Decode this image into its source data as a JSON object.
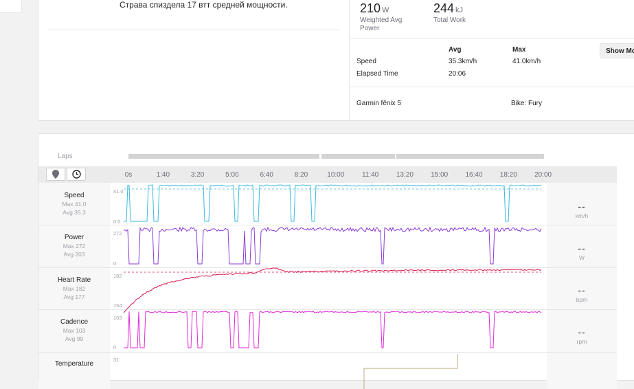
{
  "description": "Страва спиздела 17 втт средней мощности.",
  "stats": [
    {
      "value": "210",
      "unit": "W",
      "label": "Weighted Avg Power"
    },
    {
      "value": "244",
      "unit": "kJ",
      "label": "Total Work"
    }
  ],
  "table": {
    "headers": [
      "Avg",
      "Max"
    ],
    "rows": [
      {
        "label": "Speed",
        "avg": "35.3km/h",
        "max": "41.0km/h"
      },
      {
        "label": "Elapsed Time",
        "avg": "20:06",
        "max": ""
      }
    ],
    "show_more": "Show More"
  },
  "device": "Garmin fēnix 5",
  "bike": "Bike: Fury",
  "laps_label": "Laps",
  "ticks": [
    "0s",
    "1:40",
    "3:20",
    "5:00",
    "6:40",
    "8:20",
    "10:00",
    "11:40",
    "13:20",
    "15:00",
    "16:40",
    "18:20",
    "20:00"
  ],
  "streams": [
    {
      "name": "Speed",
      "max": "Max 41.0",
      "avg": "Avg 35.3",
      "ytop": "41.0",
      "ybot": "0.0",
      "readout": "--",
      "unit": "km/h",
      "color": "#3bb8e0"
    },
    {
      "name": "Power",
      "max": "Max 272",
      "avg": "Avg 203",
      "ytop": "272",
      "ybot": "0",
      "readout": "--",
      "unit": "W",
      "color": "#8a3ad6"
    },
    {
      "name": "Heart Rate",
      "max": "Max 182",
      "avg": "Avg 177",
      "ytop": "182",
      "ybot": "154",
      "readout": "--",
      "unit": "bpm",
      "color": "#d8194e"
    },
    {
      "name": "Cadence",
      "max": "Max 103",
      "avg": "Avg 99",
      "ytop": "103",
      "ybot": "0",
      "readout": "--",
      "unit": "rpm",
      "color": "#e128d8"
    },
    {
      "name": "Temperature",
      "max": "",
      "avg": "",
      "ytop": "31",
      "ybot": "",
      "readout": "",
      "unit": "",
      "color": "#b8a878"
    }
  ]
}
